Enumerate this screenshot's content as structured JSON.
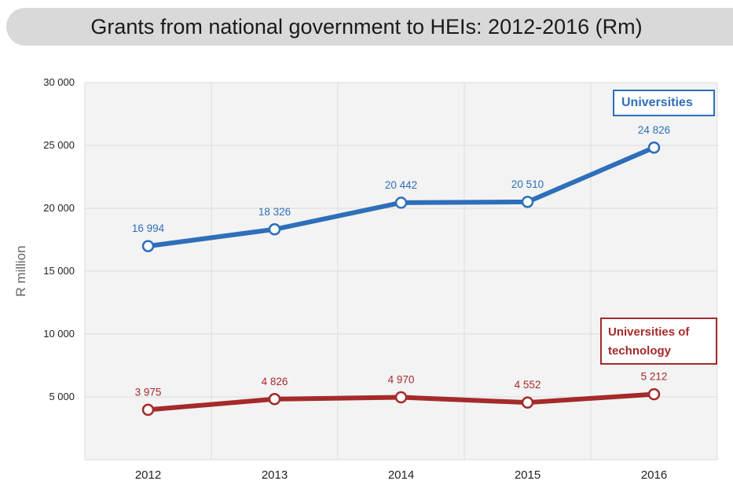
{
  "chart_data": {
    "type": "line",
    "title": "Grants from national government to HEIs: 2012-2016 (Rm)",
    "xlabel": "",
    "ylabel": "R million",
    "categories": [
      "2012",
      "2013",
      "2014",
      "2015",
      "2016"
    ],
    "ylim": [
      0,
      30000
    ],
    "yticks": [
      5000,
      10000,
      15000,
      20000,
      25000,
      30000
    ],
    "ytick_labels": [
      "5 000",
      "10 000",
      "15 000",
      "20 000",
      "25 000",
      "30 000"
    ],
    "grid": true,
    "series": [
      {
        "name": "Universities",
        "values": [
          16994,
          18326,
          20442,
          20510,
          24826
        ],
        "labels": [
          "16 994",
          "18 326",
          "20 442",
          "20 510",
          "24 826"
        ],
        "color": "#2e6fba"
      },
      {
        "name": "Universities of technology",
        "values": [
          3975,
          4826,
          4970,
          4552,
          5212
        ],
        "labels": [
          "3 975",
          "4 826",
          "4 970",
          "4 552",
          "5 212"
        ],
        "color": "#a52a2a"
      }
    ]
  }
}
